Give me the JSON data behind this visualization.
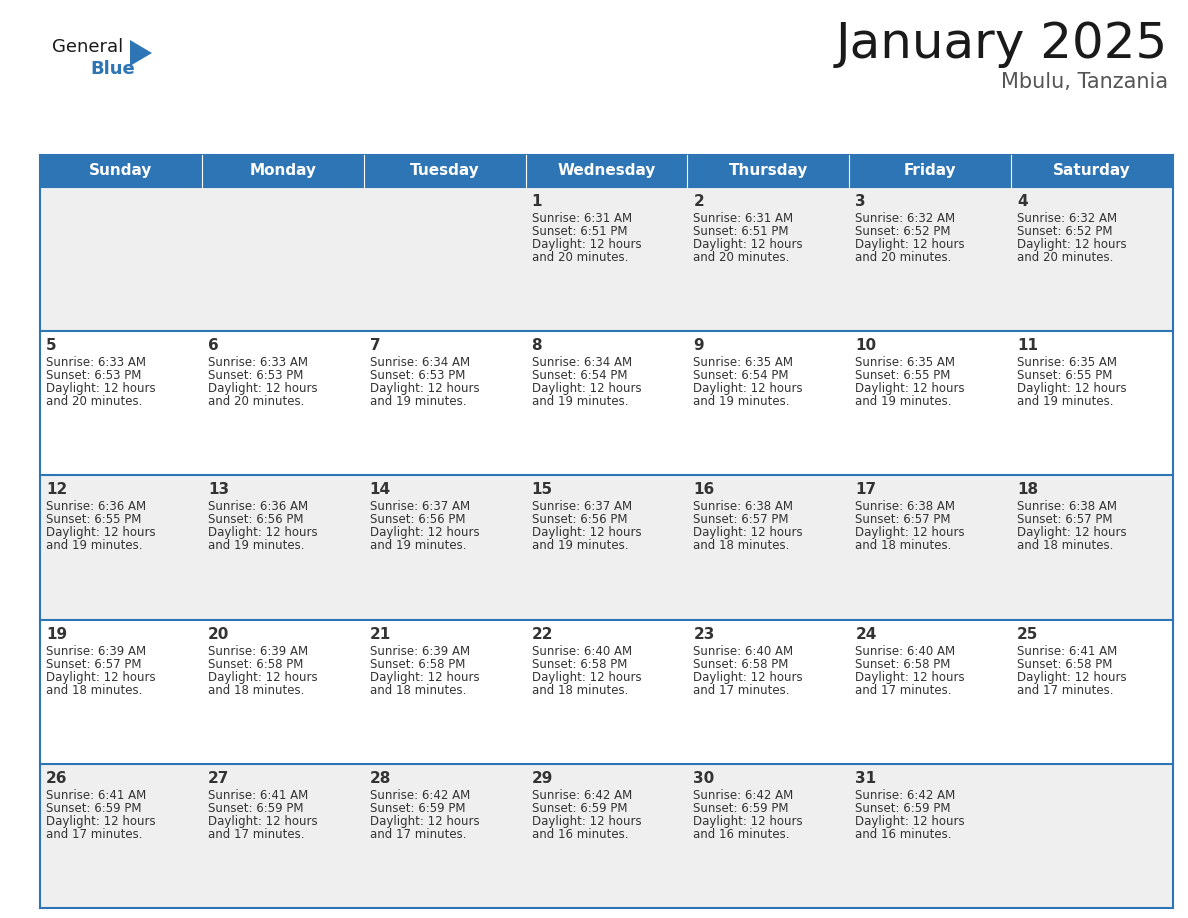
{
  "title": "January 2025",
  "subtitle": "Mbulu, Tanzania",
  "header_color": "#2E75B6",
  "header_text_color": "#FFFFFF",
  "cell_bg_odd": "#EFEFEF",
  "cell_bg_even": "#FFFFFF",
  "border_color": "#2E75B6",
  "text_color": "#333333",
  "days_of_week": [
    "Sunday",
    "Monday",
    "Tuesday",
    "Wednesday",
    "Thursday",
    "Friday",
    "Saturday"
  ],
  "calendar_data": [
    [
      {
        "day": null,
        "sunrise": null,
        "sunset": null,
        "daylight_line1": null,
        "daylight_line2": null
      },
      {
        "day": null,
        "sunrise": null,
        "sunset": null,
        "daylight_line1": null,
        "daylight_line2": null
      },
      {
        "day": null,
        "sunrise": null,
        "sunset": null,
        "daylight_line1": null,
        "daylight_line2": null
      },
      {
        "day": "1",
        "sunrise": "6:31 AM",
        "sunset": "6:51 PM",
        "daylight_line1": "Daylight: 12 hours",
        "daylight_line2": "and 20 minutes."
      },
      {
        "day": "2",
        "sunrise": "6:31 AM",
        "sunset": "6:51 PM",
        "daylight_line1": "Daylight: 12 hours",
        "daylight_line2": "and 20 minutes."
      },
      {
        "day": "3",
        "sunrise": "6:32 AM",
        "sunset": "6:52 PM",
        "daylight_line1": "Daylight: 12 hours",
        "daylight_line2": "and 20 minutes."
      },
      {
        "day": "4",
        "sunrise": "6:32 AM",
        "sunset": "6:52 PM",
        "daylight_line1": "Daylight: 12 hours",
        "daylight_line2": "and 20 minutes."
      }
    ],
    [
      {
        "day": "5",
        "sunrise": "6:33 AM",
        "sunset": "6:53 PM",
        "daylight_line1": "Daylight: 12 hours",
        "daylight_line2": "and 20 minutes."
      },
      {
        "day": "6",
        "sunrise": "6:33 AM",
        "sunset": "6:53 PM",
        "daylight_line1": "Daylight: 12 hours",
        "daylight_line2": "and 20 minutes."
      },
      {
        "day": "7",
        "sunrise": "6:34 AM",
        "sunset": "6:53 PM",
        "daylight_line1": "Daylight: 12 hours",
        "daylight_line2": "and 19 minutes."
      },
      {
        "day": "8",
        "sunrise": "6:34 AM",
        "sunset": "6:54 PM",
        "daylight_line1": "Daylight: 12 hours",
        "daylight_line2": "and 19 minutes."
      },
      {
        "day": "9",
        "sunrise": "6:35 AM",
        "sunset": "6:54 PM",
        "daylight_line1": "Daylight: 12 hours",
        "daylight_line2": "and 19 minutes."
      },
      {
        "day": "10",
        "sunrise": "6:35 AM",
        "sunset": "6:55 PM",
        "daylight_line1": "Daylight: 12 hours",
        "daylight_line2": "and 19 minutes."
      },
      {
        "day": "11",
        "sunrise": "6:35 AM",
        "sunset": "6:55 PM",
        "daylight_line1": "Daylight: 12 hours",
        "daylight_line2": "and 19 minutes."
      }
    ],
    [
      {
        "day": "12",
        "sunrise": "6:36 AM",
        "sunset": "6:55 PM",
        "daylight_line1": "Daylight: 12 hours",
        "daylight_line2": "and 19 minutes."
      },
      {
        "day": "13",
        "sunrise": "6:36 AM",
        "sunset": "6:56 PM",
        "daylight_line1": "Daylight: 12 hours",
        "daylight_line2": "and 19 minutes."
      },
      {
        "day": "14",
        "sunrise": "6:37 AM",
        "sunset": "6:56 PM",
        "daylight_line1": "Daylight: 12 hours",
        "daylight_line2": "and 19 minutes."
      },
      {
        "day": "15",
        "sunrise": "6:37 AM",
        "sunset": "6:56 PM",
        "daylight_line1": "Daylight: 12 hours",
        "daylight_line2": "and 19 minutes."
      },
      {
        "day": "16",
        "sunrise": "6:38 AM",
        "sunset": "6:57 PM",
        "daylight_line1": "Daylight: 12 hours",
        "daylight_line2": "and 18 minutes."
      },
      {
        "day": "17",
        "sunrise": "6:38 AM",
        "sunset": "6:57 PM",
        "daylight_line1": "Daylight: 12 hours",
        "daylight_line2": "and 18 minutes."
      },
      {
        "day": "18",
        "sunrise": "6:38 AM",
        "sunset": "6:57 PM",
        "daylight_line1": "Daylight: 12 hours",
        "daylight_line2": "and 18 minutes."
      }
    ],
    [
      {
        "day": "19",
        "sunrise": "6:39 AM",
        "sunset": "6:57 PM",
        "daylight_line1": "Daylight: 12 hours",
        "daylight_line2": "and 18 minutes."
      },
      {
        "day": "20",
        "sunrise": "6:39 AM",
        "sunset": "6:58 PM",
        "daylight_line1": "Daylight: 12 hours",
        "daylight_line2": "and 18 minutes."
      },
      {
        "day": "21",
        "sunrise": "6:39 AM",
        "sunset": "6:58 PM",
        "daylight_line1": "Daylight: 12 hours",
        "daylight_line2": "and 18 minutes."
      },
      {
        "day": "22",
        "sunrise": "6:40 AM",
        "sunset": "6:58 PM",
        "daylight_line1": "Daylight: 12 hours",
        "daylight_line2": "and 18 minutes."
      },
      {
        "day": "23",
        "sunrise": "6:40 AM",
        "sunset": "6:58 PM",
        "daylight_line1": "Daylight: 12 hours",
        "daylight_line2": "and 17 minutes."
      },
      {
        "day": "24",
        "sunrise": "6:40 AM",
        "sunset": "6:58 PM",
        "daylight_line1": "Daylight: 12 hours",
        "daylight_line2": "and 17 minutes."
      },
      {
        "day": "25",
        "sunrise": "6:41 AM",
        "sunset": "6:58 PM",
        "daylight_line1": "Daylight: 12 hours",
        "daylight_line2": "and 17 minutes."
      }
    ],
    [
      {
        "day": "26",
        "sunrise": "6:41 AM",
        "sunset": "6:59 PM",
        "daylight_line1": "Daylight: 12 hours",
        "daylight_line2": "and 17 minutes."
      },
      {
        "day": "27",
        "sunrise": "6:41 AM",
        "sunset": "6:59 PM",
        "daylight_line1": "Daylight: 12 hours",
        "daylight_line2": "and 17 minutes."
      },
      {
        "day": "28",
        "sunrise": "6:42 AM",
        "sunset": "6:59 PM",
        "daylight_line1": "Daylight: 12 hours",
        "daylight_line2": "and 17 minutes."
      },
      {
        "day": "29",
        "sunrise": "6:42 AM",
        "sunset": "6:59 PM",
        "daylight_line1": "Daylight: 12 hours",
        "daylight_line2": "and 16 minutes."
      },
      {
        "day": "30",
        "sunrise": "6:42 AM",
        "sunset": "6:59 PM",
        "daylight_line1": "Daylight: 12 hours",
        "daylight_line2": "and 16 minutes."
      },
      {
        "day": "31",
        "sunrise": "6:42 AM",
        "sunset": "6:59 PM",
        "daylight_line1": "Daylight: 12 hours",
        "daylight_line2": "and 16 minutes."
      },
      {
        "day": null,
        "sunrise": null,
        "sunset": null,
        "daylight_line1": null,
        "daylight_line2": null
      }
    ]
  ],
  "logo_text_general": "General",
  "logo_text_blue": "Blue",
  "logo_color_general": "#1a1a1a",
  "logo_color_blue": "#2E75B6",
  "logo_triangle_color": "#2E75B6",
  "title_fontsize": 36,
  "subtitle_fontsize": 15,
  "header_fontsize": 11,
  "day_num_fontsize": 11,
  "cell_text_fontsize": 8.5
}
